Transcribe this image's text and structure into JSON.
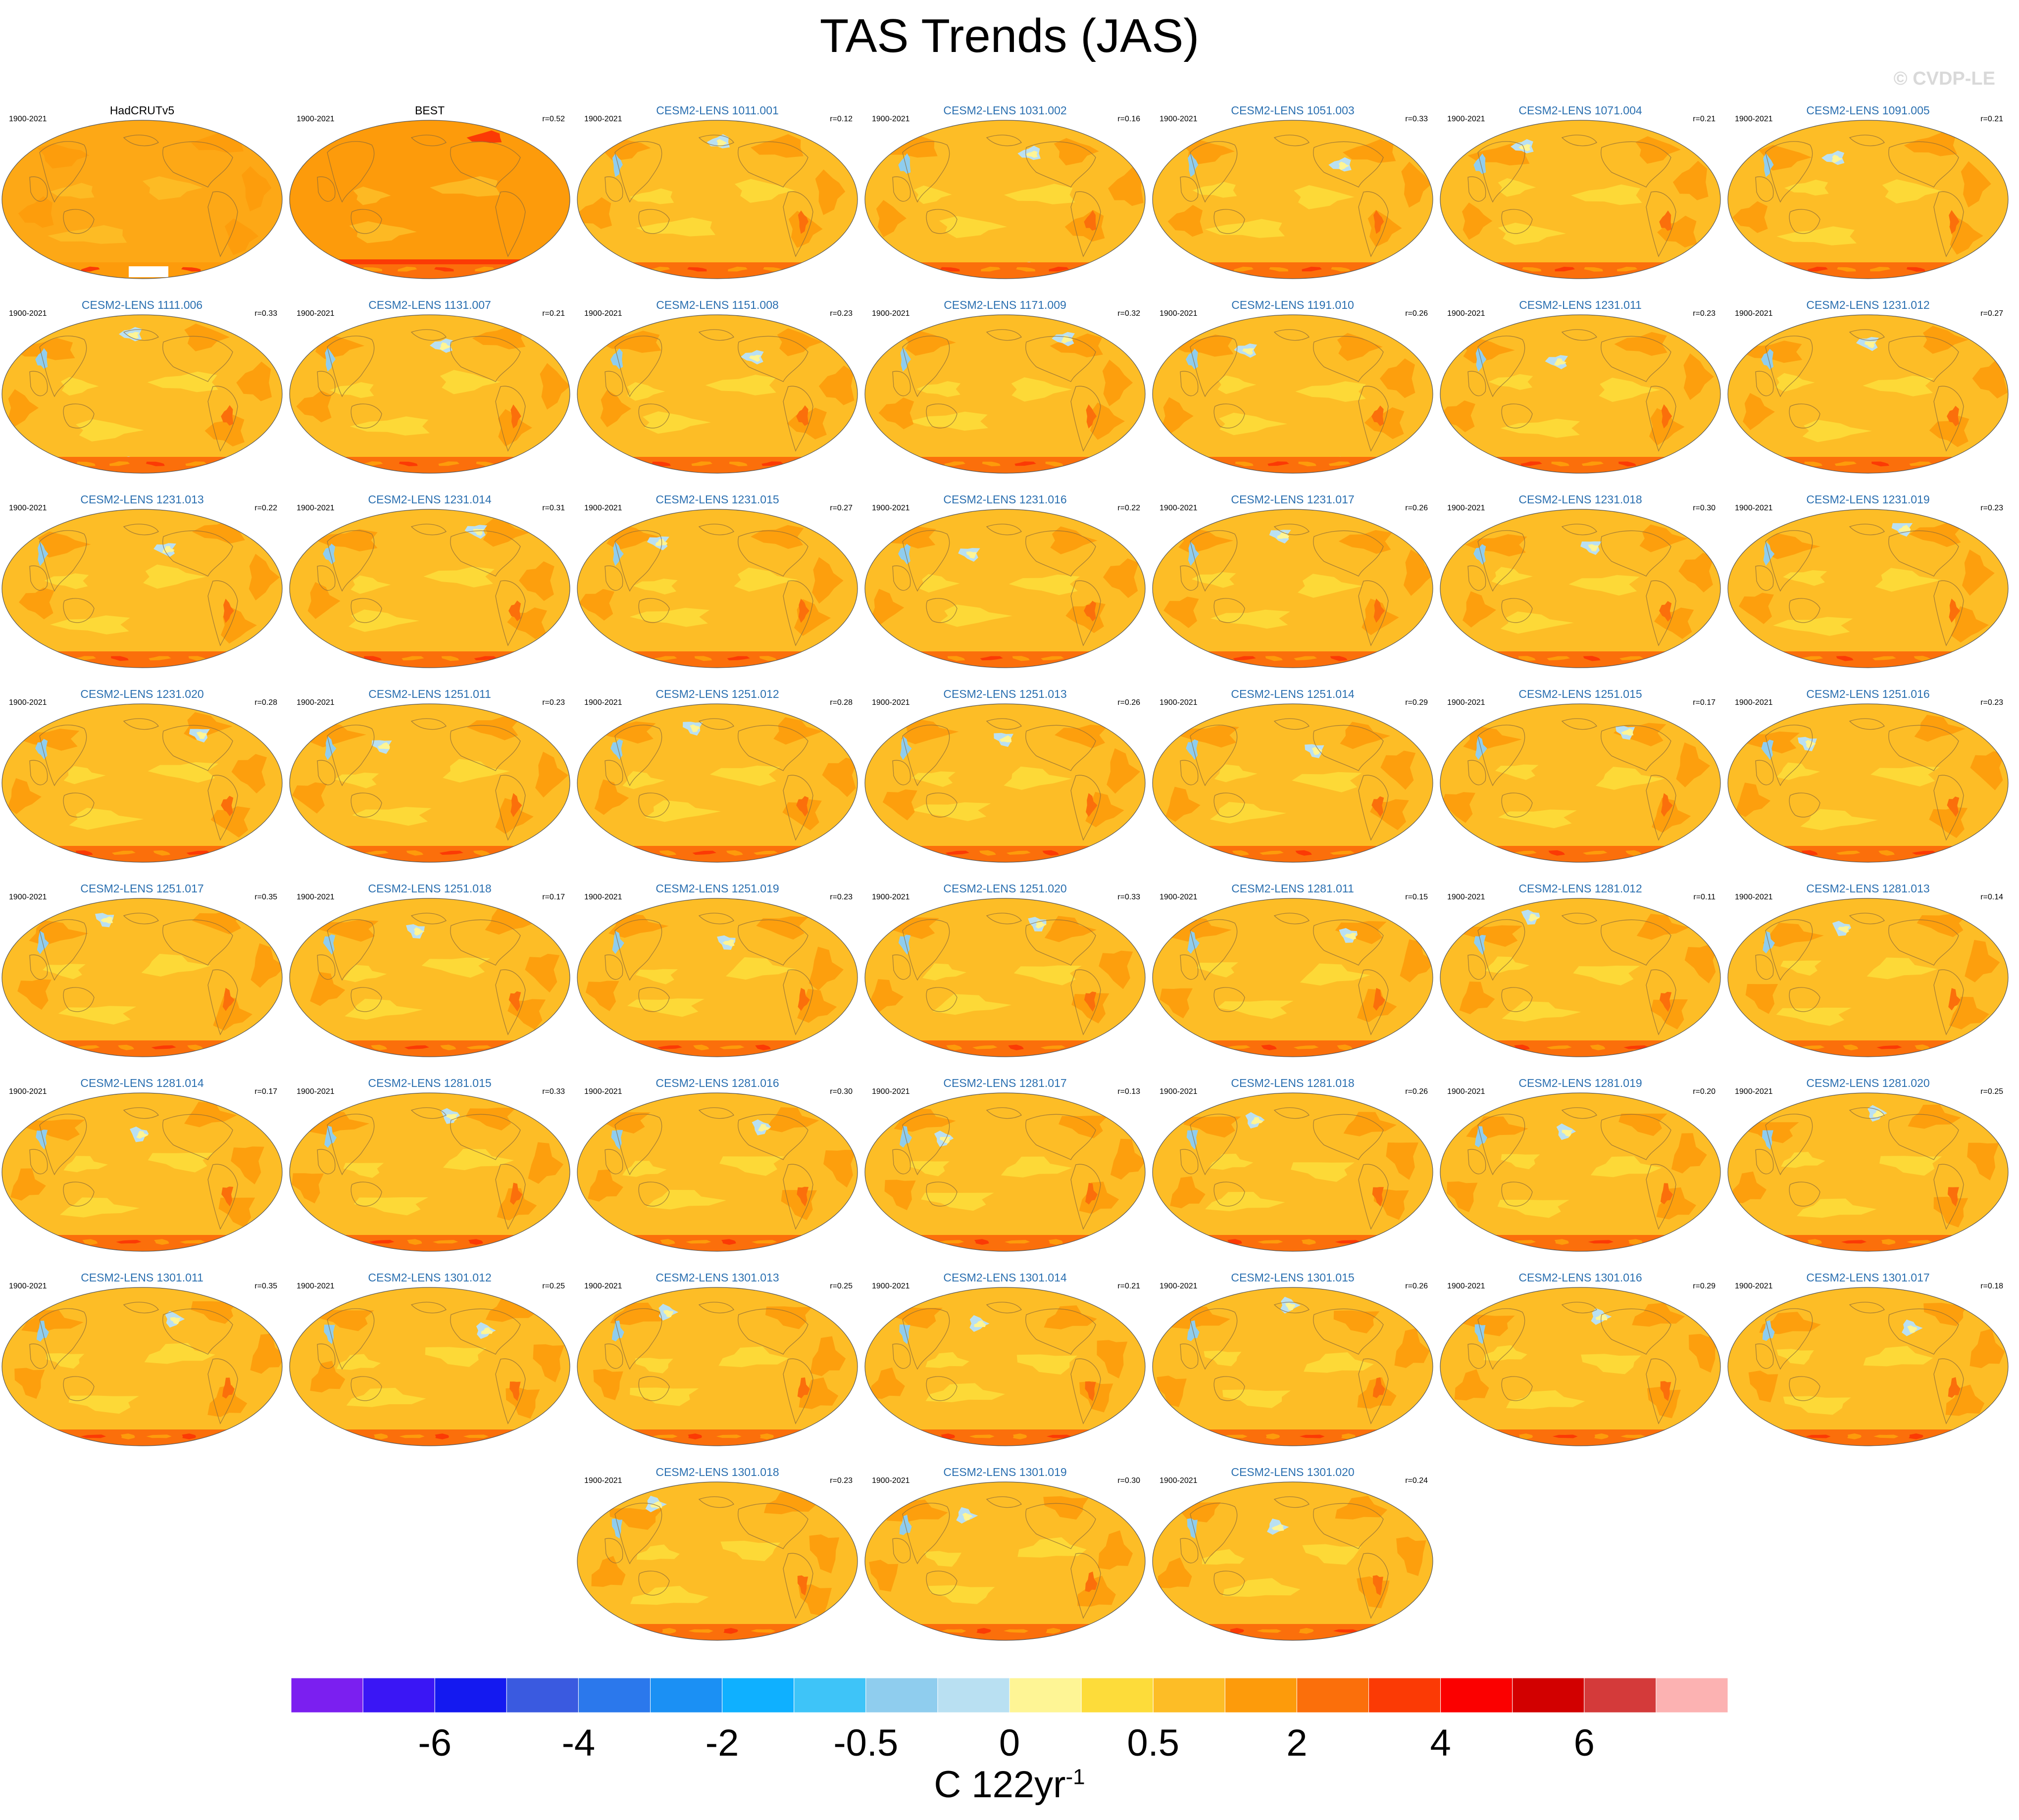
{
  "title": "TAS Trends (JAS)",
  "credit": "© CVDP-LE",
  "period": "1900-2021",
  "chart_data": {
    "type": "heatmap",
    "projection": "Robinson (global maps)",
    "panels": [
      {
        "name": "HadCRUTv5",
        "r": "",
        "observed": true
      },
      {
        "name": "BEST",
        "r": "r=0.52",
        "observed": true
      },
      {
        "name": "CESM2-LENS 1011.001",
        "r": "r=0.12"
      },
      {
        "name": "CESM2-LENS 1031.002",
        "r": "r=0.16"
      },
      {
        "name": "CESM2-LENS 1051.003",
        "r": "r=0.33"
      },
      {
        "name": "CESM2-LENS 1071.004",
        "r": "r=0.21"
      },
      {
        "name": "CESM2-LENS 1091.005",
        "r": "r=0.21"
      },
      {
        "name": "CESM2-LENS 1111.006",
        "r": "r=0.33"
      },
      {
        "name": "CESM2-LENS 1131.007",
        "r": "r=0.21"
      },
      {
        "name": "CESM2-LENS 1151.008",
        "r": "r=0.23"
      },
      {
        "name": "CESM2-LENS 1171.009",
        "r": "r=0.32"
      },
      {
        "name": "CESM2-LENS 1191.010",
        "r": "r=0.26"
      },
      {
        "name": "CESM2-LENS 1231.011",
        "r": "r=0.23"
      },
      {
        "name": "CESM2-LENS 1231.012",
        "r": "r=0.27"
      },
      {
        "name": "CESM2-LENS 1231.013",
        "r": "r=0.22"
      },
      {
        "name": "CESM2-LENS 1231.014",
        "r": "r=0.31"
      },
      {
        "name": "CESM2-LENS 1231.015",
        "r": "r=0.27"
      },
      {
        "name": "CESM2-LENS 1231.016",
        "r": "r=0.22"
      },
      {
        "name": "CESM2-LENS 1231.017",
        "r": "r=0.26"
      },
      {
        "name": "CESM2-LENS 1231.018",
        "r": "r=0.30"
      },
      {
        "name": "CESM2-LENS 1231.019",
        "r": "r=0.23"
      },
      {
        "name": "CESM2-LENS 1231.020",
        "r": "r=0.28"
      },
      {
        "name": "CESM2-LENS 1251.011",
        "r": "r=0.23"
      },
      {
        "name": "CESM2-LENS 1251.012",
        "r": "r=0.28"
      },
      {
        "name": "CESM2-LENS 1251.013",
        "r": "r=0.26"
      },
      {
        "name": "CESM2-LENS 1251.014",
        "r": "r=0.29"
      },
      {
        "name": "CESM2-LENS 1251.015",
        "r": "r=0.17"
      },
      {
        "name": "CESM2-LENS 1251.016",
        "r": "r=0.23"
      },
      {
        "name": "CESM2-LENS 1251.017",
        "r": "r=0.35"
      },
      {
        "name": "CESM2-LENS 1251.018",
        "r": "r=0.17"
      },
      {
        "name": "CESM2-LENS 1251.019",
        "r": "r=0.23"
      },
      {
        "name": "CESM2-LENS 1251.020",
        "r": "r=0.33"
      },
      {
        "name": "CESM2-LENS 1281.011",
        "r": "r=0.15"
      },
      {
        "name": "CESM2-LENS 1281.012",
        "r": "r=0.11"
      },
      {
        "name": "CESM2-LENS 1281.013",
        "r": "r=0.14"
      },
      {
        "name": "CESM2-LENS 1281.014",
        "r": "r=0.17"
      },
      {
        "name": "CESM2-LENS 1281.015",
        "r": "r=0.33"
      },
      {
        "name": "CESM2-LENS 1281.016",
        "r": "r=0.30"
      },
      {
        "name": "CESM2-LENS 1281.017",
        "r": "r=0.13"
      },
      {
        "name": "CESM2-LENS 1281.018",
        "r": "r=0.26"
      },
      {
        "name": "CESM2-LENS 1281.019",
        "r": "r=0.20"
      },
      {
        "name": "CESM2-LENS 1281.020",
        "r": "r=0.25"
      },
      {
        "name": "CESM2-LENS 1301.011",
        "r": "r=0.35"
      },
      {
        "name": "CESM2-LENS 1301.012",
        "r": "r=0.25"
      },
      {
        "name": "CESM2-LENS 1301.013",
        "r": "r=0.25"
      },
      {
        "name": "CESM2-LENS 1301.014",
        "r": "r=0.21"
      },
      {
        "name": "CESM2-LENS 1301.015",
        "r": "r=0.26"
      },
      {
        "name": "CESM2-LENS 1301.016",
        "r": "r=0.29"
      },
      {
        "name": "CESM2-LENS 1301.017",
        "r": "r=0.18"
      },
      {
        "name": "CESM2-LENS 1301.018",
        "r": "r=0.23"
      },
      {
        "name": "CESM2-LENS 1301.019",
        "r": "r=0.30"
      },
      {
        "name": "CESM2-LENS 1301.020",
        "r": "r=0.24"
      }
    ],
    "colorbar": {
      "units_base": "C 122yr",
      "units_exp": "-1",
      "tick_labels": [
        "-6",
        "-4",
        "-2",
        "-0.5",
        "0",
        "0.5",
        "2",
        "4",
        "6"
      ],
      "colors": [
        "#7b1ff0",
        "#3a16f5",
        "#1419f0",
        "#3a5ae0",
        "#2b78ec",
        "#1b90f4",
        "#0fb0ff",
        "#3ec4f8",
        "#8fcdee",
        "#b9e0f2",
        "#fef595",
        "#fddc3a",
        "#fdbd26",
        "#fd9b0b",
        "#fb6f0b",
        "#fb3a05",
        "#fb0000",
        "#d20000",
        "#d43a3a",
        "#fcb2b2"
      ]
    }
  }
}
